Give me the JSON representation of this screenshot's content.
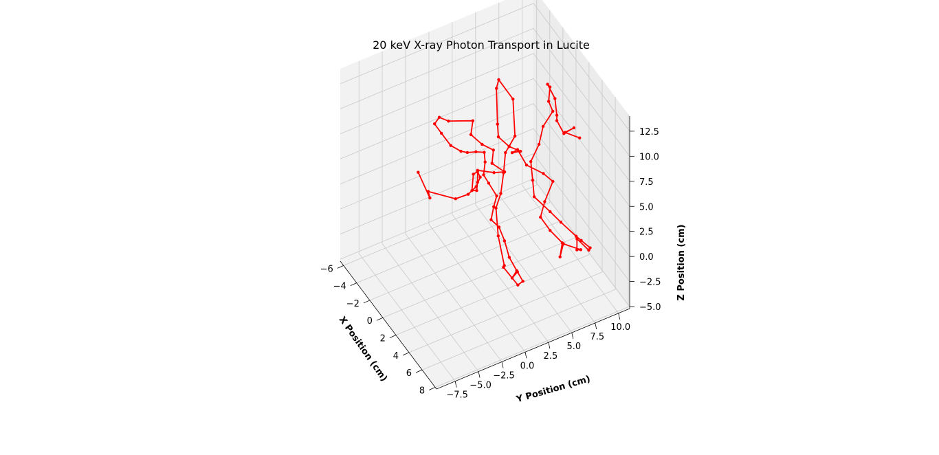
{
  "chart_data": {
    "type": "line3d",
    "title": "20 keV X-ray Photon Transport in Lucite",
    "xlabel": "X Position (cm)",
    "ylabel": "Y Position (cm)",
    "zlabel": "Z Position (cm)",
    "xlim": [
      -6.5,
      8.2
    ],
    "ylim": [
      -9.5,
      11.2
    ],
    "zlim": [
      -5.2,
      14
    ],
    "x_ticks": [
      "−6",
      "−4",
      "−2",
      "0",
      "2",
      "4",
      "6",
      "8"
    ],
    "y_ticks": [
      "−7.5",
      "−5.0",
      "−2.5",
      "0.0",
      "2.5",
      "5.0",
      "7.5",
      "10.0"
    ],
    "z_ticks": [
      "−5.0",
      "−2.5",
      "0.0",
      "2.5",
      "5.0",
      "7.5",
      "10.0",
      "12.5"
    ],
    "grid": true,
    "series_color": "#ff0000",
    "marker": "circle",
    "points": [
      [
        -6.0,
        -1.5,
        1.0
      ],
      [
        -3.5,
        -2.0,
        0.8
      ],
      [
        -3.6,
        -2.1,
        1.4
      ],
      [
        -1.0,
        -1.0,
        2.5
      ],
      [
        -0.5,
        0.0,
        3.0
      ],
      [
        0.0,
        0.5,
        4.0
      ],
      [
        0.2,
        0.8,
        5.0
      ],
      [
        0.5,
        0.3,
        6.0
      ],
      [
        1.0,
        -0.5,
        6.5
      ],
      [
        1.5,
        -1.0,
        5.5
      ],
      [
        0.8,
        0.0,
        4.5
      ],
      [
        -0.5,
        1.0,
        3.8
      ],
      [
        -1.2,
        1.5,
        4.2
      ],
      [
        0.3,
        2.2,
        5.0
      ],
      [
        1.5,
        2.5,
        6.0
      ],
      [
        1.0,
        1.5,
        6.8
      ],
      [
        0.5,
        2.0,
        7.5
      ],
      [
        0.2,
        1.0,
        8.2
      ],
      [
        -0.8,
        0.5,
        8.5
      ],
      [
        -1.5,
        1.2,
        9.0
      ],
      [
        -2.8,
        -0.5,
        8.5
      ],
      [
        -3.2,
        -1.2,
        8.8
      ],
      [
        -3.5,
        -1.5,
        8.0
      ],
      [
        -3.3,
        -0.9,
        7.0
      ],
      [
        -2.6,
        -0.4,
        6.2
      ],
      [
        -1.9,
        0.2,
        6.0
      ],
      [
        -1.2,
        0.4,
        6.4
      ],
      [
        -0.6,
        0.9,
        6.8
      ],
      [
        0.1,
        1.3,
        7.2
      ],
      [
        0.8,
        0.9,
        7.0
      ],
      [
        1.0,
        0.6,
        6.0
      ],
      [
        1.2,
        1.0,
        5.2
      ],
      [
        2.0,
        1.3,
        4.5
      ],
      [
        2.4,
        0.7,
        4.0
      ],
      [
        3.0,
        0.0,
        3.5
      ],
      [
        3.5,
        0.5,
        3.0
      ],
      [
        4.2,
        0.6,
        2.2
      ],
      [
        5.2,
        0.4,
        1.5
      ],
      [
        6.2,
        0.5,
        1.0
      ],
      [
        6.5,
        -0.2,
        0.8
      ],
      [
        6.6,
        0.3,
        1.3
      ],
      [
        7.0,
        0.6,
        0.6
      ],
      [
        6.8,
        0.2,
        0.2
      ],
      [
        5.6,
        -0.5,
        1.2
      ],
      [
        5.3,
        -0.2,
        1.0
      ],
      [
        3.8,
        0.2,
        2.5
      ],
      [
        2.6,
        0.8,
        4.0
      ],
      [
        2.2,
        1.6,
        4.8
      ],
      [
        1.2,
        2.6,
        5.6
      ],
      [
        0.2,
        3.5,
        6.4
      ],
      [
        -0.2,
        4.8,
        7.2
      ],
      [
        -1.5,
        5.5,
        9.5
      ],
      [
        -2.4,
        4.6,
        11.0
      ],
      [
        -2.6,
        4.5,
        10.0
      ],
      [
        -0.3,
        3.0,
        9.0
      ],
      [
        0.4,
        2.6,
        8.5
      ],
      [
        1.2,
        3.2,
        8.0
      ],
      [
        1.5,
        4.2,
        7.4
      ],
      [
        0.8,
        3.8,
        6.8
      ],
      [
        0.2,
        4.8,
        6.2
      ],
      [
        1.0,
        5.2,
        5.2
      ],
      [
        2.0,
        6.3,
        4.8
      ],
      [
        2.6,
        6.9,
        4.3
      ],
      [
        3.2,
        5.6,
        3.3
      ],
      [
        3.7,
        4.8,
        2.5
      ],
      [
        4.6,
        5.2,
        1.8
      ],
      [
        5.6,
        5.8,
        1.2
      ],
      [
        6.4,
        5.0,
        0.8
      ],
      [
        5.2,
        6.2,
        0.6
      ],
      [
        6.0,
        7.5,
        0.2
      ],
      [
        5.7,
        7.3,
        0.0
      ],
      [
        5.0,
        7.8,
        0.3
      ],
      [
        5.8,
        8.5,
        -0.4
      ],
      [
        5.3,
        9.0,
        -0.8
      ],
      [
        4.5,
        8.6,
        -0.6
      ],
      [
        4.3,
        8.2,
        -0.2
      ],
      [
        3.4,
        7.2,
        0.8
      ],
      [
        2.6,
        6.6,
        1.4
      ],
      [
        1.6,
        5.6,
        2.4
      ],
      [
        0.8,
        6.0,
        3.2
      ],
      [
        -0.2,
        6.5,
        4.0
      ],
      [
        -0.8,
        7.8,
        4.7
      ],
      [
        -1.6,
        8.8,
        5.4
      ],
      [
        -2.4,
        10.4,
        5.6
      ],
      [
        -2.9,
        10.3,
        6.2
      ],
      [
        -3.4,
        10.8,
        7.0
      ],
      [
        -3.2,
        10.4,
        7.6
      ],
      [
        -1.5,
        10.0,
        7.8
      ],
      [
        -0.5,
        9.5,
        7.2
      ],
      [
        0.5,
        8.8,
        7.8
      ],
      [
        1.0,
        9.2,
        6.8
      ],
      [
        1.4,
        10.0,
        7.4
      ],
      [
        0.6,
        9.6,
        6.4
      ],
      [
        1.7,
        10.4,
        6.5
      ]
    ]
  }
}
